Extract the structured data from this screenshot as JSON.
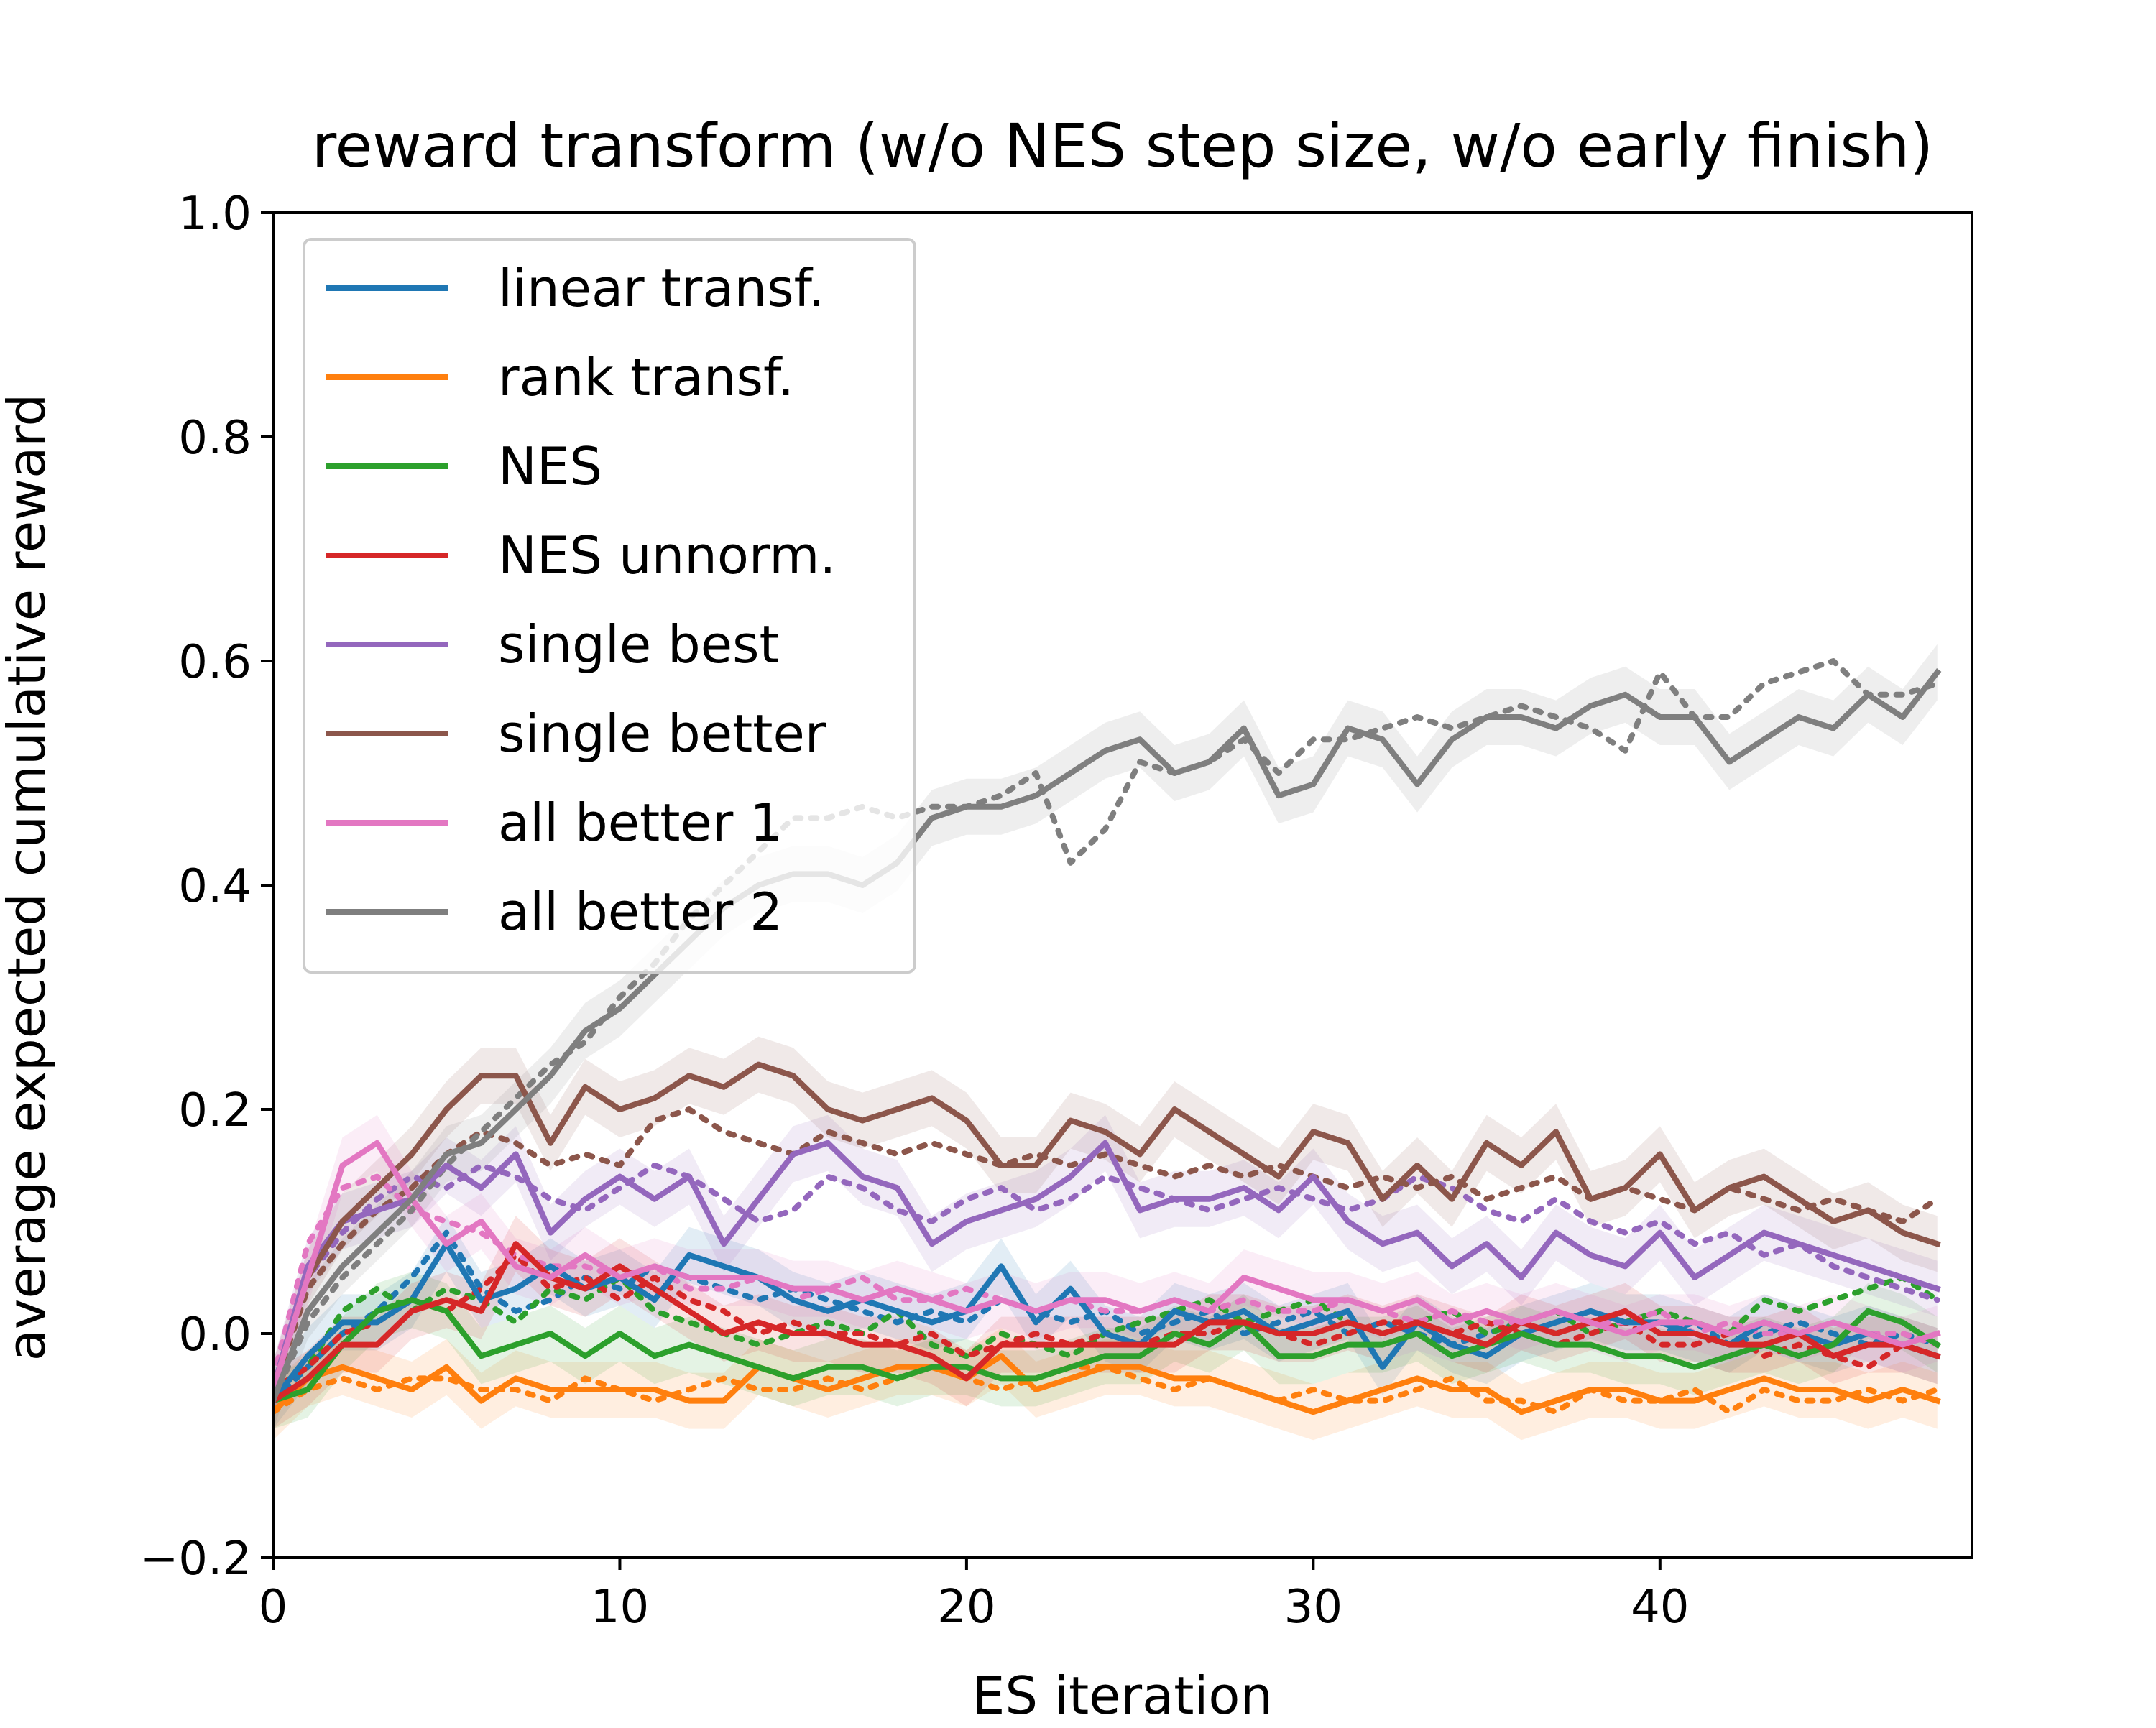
{
  "chart_data": {
    "type": "line",
    "title": "reward transform (w/o NES step size, w/o early finish)",
    "xlabel": "ES iteration",
    "ylabel": "average expected cumulative reward",
    "xlim": [
      0,
      49
    ],
    "ylim": [
      -0.2,
      1.0
    ],
    "xticks": [
      0,
      10,
      20,
      30,
      40
    ],
    "xtick_labels": [
      "0",
      "10",
      "20",
      "30",
      "40"
    ],
    "yticks": [
      -0.2,
      0.0,
      0.2,
      0.4,
      0.6,
      0.8,
      1.0
    ],
    "ytick_labels": [
      "−0.2",
      "0.0",
      "0.2",
      "0.4",
      "0.6",
      "0.8",
      "1.0"
    ],
    "grid": false,
    "legend_position": "upper-left",
    "band_half_width": 0.025,
    "series": [
      {
        "name": "linear transf.",
        "color": "#1f77b4",
        "values": [
          -0.06,
          -0.02,
          0.01,
          0.01,
          0.03,
          0.08,
          0.03,
          0.04,
          0.06,
          0.04,
          0.05,
          0.03,
          0.07,
          0.06,
          0.05,
          0.03,
          0.02,
          0.03,
          0.02,
          0.01,
          0.02,
          0.06,
          0.01,
          0.04,
          0.0,
          -0.01,
          0.02,
          0.01,
          0.02,
          0.0,
          0.01,
          0.02,
          -0.03,
          0.01,
          -0.01,
          -0.02,
          0.0,
          0.01,
          0.02,
          0.01,
          0.01,
          0.0,
          -0.01,
          0.01,
          0.0,
          -0.01,
          0.0,
          -0.01,
          -0.02
        ],
        "dotted": [
          -0.06,
          -0.03,
          0.0,
          0.02,
          0.05,
          0.09,
          0.04,
          0.02,
          0.03,
          0.05,
          0.04,
          0.06,
          0.05,
          0.04,
          0.03,
          0.04,
          0.03,
          0.02,
          0.01,
          0.02,
          0.01,
          0.03,
          0.02,
          0.01,
          0.02,
          0.0,
          0.01,
          0.02,
          0.0,
          0.01,
          0.02,
          0.0,
          0.01,
          0.0,
          -0.01,
          0.0,
          0.01,
          0.0,
          0.01,
          0.02,
          0.0,
          0.01,
          -0.01,
          0.0,
          0.01,
          0.0,
          -0.01,
          0.0,
          -0.01
        ]
      },
      {
        "name": "rank transf.",
        "color": "#ff7f0e",
        "values": [
          -0.07,
          -0.04,
          -0.03,
          -0.04,
          -0.05,
          -0.03,
          -0.06,
          -0.04,
          -0.05,
          -0.05,
          -0.05,
          -0.05,
          -0.06,
          -0.06,
          -0.03,
          -0.04,
          -0.05,
          -0.04,
          -0.03,
          -0.03,
          -0.04,
          -0.02,
          -0.05,
          -0.04,
          -0.03,
          -0.03,
          -0.04,
          -0.04,
          -0.05,
          -0.06,
          -0.07,
          -0.06,
          -0.05,
          -0.04,
          -0.05,
          -0.05,
          -0.07,
          -0.06,
          -0.05,
          -0.05,
          -0.06,
          -0.06,
          -0.05,
          -0.04,
          -0.05,
          -0.05,
          -0.06,
          -0.05,
          -0.06
        ],
        "dotted": [
          -0.07,
          -0.05,
          -0.04,
          -0.05,
          -0.04,
          -0.04,
          -0.05,
          -0.05,
          -0.06,
          -0.04,
          -0.05,
          -0.06,
          -0.05,
          -0.04,
          -0.05,
          -0.05,
          -0.04,
          -0.05,
          -0.04,
          -0.03,
          -0.04,
          -0.05,
          -0.04,
          -0.03,
          -0.03,
          -0.04,
          -0.05,
          -0.04,
          -0.05,
          -0.06,
          -0.05,
          -0.06,
          -0.06,
          -0.05,
          -0.04,
          -0.06,
          -0.06,
          -0.07,
          -0.05,
          -0.06,
          -0.06,
          -0.05,
          -0.07,
          -0.05,
          -0.06,
          -0.06,
          -0.05,
          -0.06,
          -0.05
        ]
      },
      {
        "name": "NES",
        "color": "#2ca02c",
        "values": [
          -0.06,
          -0.05,
          -0.01,
          0.02,
          0.03,
          0.02,
          -0.02,
          -0.01,
          0.0,
          -0.02,
          0.0,
          -0.02,
          -0.01,
          -0.02,
          -0.03,
          -0.04,
          -0.03,
          -0.03,
          -0.04,
          -0.03,
          -0.03,
          -0.04,
          -0.04,
          -0.03,
          -0.02,
          -0.02,
          0.0,
          -0.01,
          0.01,
          -0.02,
          -0.02,
          -0.01,
          -0.01,
          0.0,
          -0.02,
          -0.01,
          0.0,
          -0.01,
          -0.01,
          -0.02,
          -0.02,
          -0.03,
          -0.02,
          -0.01,
          -0.02,
          -0.01,
          0.02,
          0.01,
          -0.01
        ],
        "dotted": [
          -0.05,
          -0.03,
          0.02,
          0.04,
          0.02,
          0.04,
          0.03,
          0.01,
          0.04,
          0.03,
          0.05,
          0.02,
          0.01,
          0.0,
          -0.01,
          0.0,
          0.01,
          0.0,
          0.02,
          -0.01,
          -0.02,
          0.0,
          -0.01,
          -0.02,
          0.0,
          0.01,
          0.02,
          0.03,
          0.01,
          0.02,
          0.03,
          0.01,
          0.0,
          0.01,
          0.02,
          0.0,
          0.01,
          0.02,
          0.0,
          0.01,
          0.02,
          0.01,
          0.0,
          0.03,
          0.02,
          0.03,
          0.04,
          0.05,
          0.03
        ]
      },
      {
        "name": "NES unnorm.",
        "color": "#d62728",
        "values": [
          -0.06,
          -0.04,
          -0.01,
          -0.01,
          0.02,
          0.03,
          0.02,
          0.08,
          0.05,
          0.04,
          0.06,
          0.04,
          0.02,
          0.0,
          0.01,
          0.0,
          0.0,
          -0.01,
          -0.01,
          -0.02,
          -0.04,
          -0.01,
          -0.01,
          -0.01,
          -0.01,
          -0.01,
          -0.01,
          0.01,
          0.01,
          0.0,
          0.0,
          0.01,
          0.0,
          0.01,
          0.0,
          -0.01,
          0.01,
          0.0,
          0.01,
          0.02,
          0.0,
          0.0,
          -0.01,
          -0.01,
          0.0,
          -0.02,
          -0.01,
          -0.01,
          -0.02
        ],
        "dotted": [
          -0.05,
          -0.03,
          0.0,
          0.01,
          0.03,
          0.02,
          0.04,
          0.07,
          0.04,
          0.05,
          0.03,
          0.05,
          0.03,
          0.02,
          0.0,
          0.01,
          0.0,
          0.0,
          -0.01,
          0.0,
          -0.02,
          -0.01,
          0.0,
          -0.01,
          0.0,
          -0.01,
          0.0,
          0.0,
          0.01,
          0.0,
          -0.01,
          0.0,
          0.01,
          0.01,
          0.0,
          0.01,
          0.0,
          -0.01,
          0.0,
          0.01,
          -0.01,
          -0.01,
          0.0,
          -0.02,
          -0.01,
          -0.02,
          -0.03,
          -0.01,
          -0.02
        ]
      },
      {
        "name": "single best",
        "color": "#9467bd",
        "values": [
          -0.05,
          0.06,
          0.1,
          0.11,
          0.12,
          0.15,
          0.13,
          0.16,
          0.09,
          0.12,
          0.14,
          0.12,
          0.14,
          0.08,
          0.12,
          0.16,
          0.17,
          0.14,
          0.13,
          0.08,
          0.1,
          0.11,
          0.12,
          0.14,
          0.17,
          0.11,
          0.12,
          0.12,
          0.13,
          0.11,
          0.14,
          0.1,
          0.08,
          0.09,
          0.06,
          0.08,
          0.05,
          0.09,
          0.07,
          0.06,
          0.09,
          0.05,
          0.07,
          0.09,
          0.08,
          0.07,
          0.06,
          0.05,
          0.04
        ],
        "dotted": [
          -0.05,
          0.05,
          0.09,
          0.12,
          0.14,
          0.13,
          0.15,
          0.14,
          0.12,
          0.11,
          0.13,
          0.15,
          0.14,
          0.12,
          0.1,
          0.11,
          0.14,
          0.13,
          0.11,
          0.1,
          0.12,
          0.13,
          0.11,
          0.12,
          0.14,
          0.13,
          0.12,
          0.11,
          0.12,
          0.13,
          0.12,
          0.11,
          0.12,
          0.14,
          0.13,
          0.11,
          0.1,
          0.12,
          0.1,
          0.09,
          0.1,
          0.08,
          0.09,
          0.07,
          0.08,
          0.06,
          0.05,
          0.04,
          0.03
        ]
      },
      {
        "name": "single better",
        "color": "#8c564b",
        "values": [
          -0.05,
          0.05,
          0.1,
          0.13,
          0.16,
          0.2,
          0.23,
          0.23,
          0.17,
          0.22,
          0.2,
          0.21,
          0.23,
          0.22,
          0.24,
          0.23,
          0.2,
          0.19,
          0.2,
          0.21,
          0.19,
          0.15,
          0.15,
          0.19,
          0.18,
          0.16,
          0.2,
          0.18,
          0.16,
          0.14,
          0.18,
          0.17,
          0.12,
          0.15,
          0.12,
          0.17,
          0.15,
          0.18,
          0.12,
          0.13,
          0.16,
          0.11,
          0.13,
          0.14,
          0.12,
          0.1,
          0.11,
          0.09,
          0.08
        ],
        "dotted": [
          -0.05,
          0.04,
          0.08,
          0.11,
          0.13,
          0.16,
          0.18,
          0.17,
          0.15,
          0.16,
          0.15,
          0.19,
          0.2,
          0.18,
          0.17,
          0.16,
          0.18,
          0.17,
          0.16,
          0.17,
          0.16,
          0.15,
          0.16,
          0.15,
          0.16,
          0.15,
          0.14,
          0.15,
          0.14,
          0.15,
          0.14,
          0.13,
          0.14,
          0.13,
          0.14,
          0.12,
          0.13,
          0.14,
          0.12,
          0.13,
          0.12,
          0.11,
          0.13,
          0.12,
          0.11,
          0.12,
          0.11,
          0.1,
          0.12
        ]
      },
      {
        "name": "all better 1",
        "color": "#e377c2",
        "values": [
          -0.05,
          0.05,
          0.15,
          0.17,
          0.12,
          0.08,
          0.1,
          0.06,
          0.05,
          0.07,
          0.05,
          0.06,
          0.05,
          0.05,
          0.05,
          0.04,
          0.04,
          0.03,
          0.04,
          0.03,
          0.02,
          0.03,
          0.02,
          0.03,
          0.03,
          0.02,
          0.03,
          0.02,
          0.05,
          0.04,
          0.03,
          0.03,
          0.02,
          0.03,
          0.01,
          0.02,
          0.01,
          0.02,
          0.01,
          0.0,
          0.01,
          0.01,
          0.0,
          0.01,
          0.0,
          0.01,
          0.0,
          -0.01,
          0.0
        ],
        "dotted": [
          -0.04,
          0.08,
          0.13,
          0.14,
          0.11,
          0.1,
          0.09,
          0.07,
          0.06,
          0.06,
          0.05,
          0.06,
          0.04,
          0.04,
          0.05,
          0.03,
          0.04,
          0.05,
          0.03,
          0.03,
          0.04,
          0.03,
          0.02,
          0.03,
          0.02,
          0.02,
          0.03,
          0.02,
          0.03,
          0.02,
          0.02,
          0.03,
          0.02,
          0.01,
          0.02,
          0.01,
          0.01,
          0.02,
          0.01,
          0.01,
          0.02,
          0.0,
          0.01,
          0.0,
          0.0,
          -0.01,
          0.0,
          0.0,
          -0.01
        ]
      },
      {
        "name": "all better 2",
        "color": "#7f7f7f",
        "values": [
          -0.06,
          0.02,
          0.06,
          0.09,
          0.12,
          0.16,
          0.17,
          0.2,
          0.23,
          0.27,
          0.29,
          0.32,
          0.35,
          0.38,
          0.4,
          0.41,
          0.41,
          0.4,
          0.42,
          0.46,
          0.47,
          0.47,
          0.48,
          0.5,
          0.52,
          0.53,
          0.5,
          0.51,
          0.54,
          0.48,
          0.49,
          0.54,
          0.53,
          0.49,
          0.53,
          0.55,
          0.55,
          0.54,
          0.56,
          0.57,
          0.55,
          0.55,
          0.51,
          0.53,
          0.55,
          0.54,
          0.57,
          0.55,
          0.59
        ],
        "dotted": [
          -0.06,
          0.01,
          0.05,
          0.08,
          0.11,
          0.15,
          0.18,
          0.21,
          0.24,
          0.26,
          0.3,
          0.33,
          0.37,
          0.4,
          0.43,
          0.46,
          0.46,
          0.47,
          0.46,
          0.47,
          0.47,
          0.48,
          0.5,
          0.42,
          0.45,
          0.51,
          0.5,
          0.51,
          0.53,
          0.5,
          0.53,
          0.53,
          0.54,
          0.55,
          0.54,
          0.55,
          0.56,
          0.55,
          0.54,
          0.52,
          0.59,
          0.55,
          0.55,
          0.58,
          0.59,
          0.6,
          0.57,
          0.57,
          0.58
        ]
      }
    ]
  }
}
